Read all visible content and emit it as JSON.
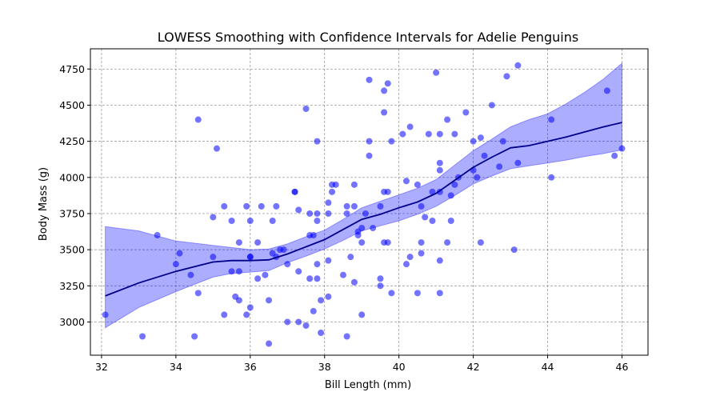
{
  "chart_data": {
    "type": "scatter",
    "title": "LOWESS Smoothing with Confidence Intervals for Adelie Penguins",
    "xlabel": "Bill Length (mm)",
    "ylabel": "Body Mass (g)",
    "xlim": [
      31.7,
      46.7
    ],
    "ylim": [
      2770,
      4890
    ],
    "xticks": [
      32,
      34,
      36,
      38,
      40,
      42,
      44,
      46
    ],
    "yticks": [
      3000,
      3250,
      3500,
      3750,
      4000,
      4250,
      4500,
      4750
    ],
    "grid": true,
    "colors": {
      "points": "#0000ff",
      "smooth_line": "#00008b",
      "band": "#0000ff"
    },
    "series": [
      {
        "kind": "scatter",
        "x": [
          32.1,
          33.1,
          33.5,
          34.0,
          34.1,
          34.4,
          34.5,
          34.6,
          34.6,
          35.0,
          35.0,
          35.1,
          35.3,
          35.3,
          35.5,
          35.5,
          35.6,
          35.7,
          35.7,
          35.7,
          35.9,
          35.9,
          36.0,
          36.0,
          36.0,
          36.0,
          36.2,
          36.2,
          36.3,
          36.4,
          36.5,
          36.5,
          36.6,
          36.6,
          36.7,
          36.7,
          36.8,
          36.9,
          37.0,
          37.0,
          37.2,
          37.2,
          37.3,
          37.3,
          37.3,
          37.5,
          37.5,
          37.6,
          37.6,
          37.6,
          37.7,
          37.7,
          37.8,
          37.8,
          37.8,
          37.8,
          37.8,
          37.9,
          37.9,
          38.1,
          38.1,
          38.1,
          38.1,
          38.2,
          38.2,
          38.3,
          38.5,
          38.6,
          38.6,
          38.6,
          38.7,
          38.8,
          38.8,
          38.8,
          38.9,
          38.9,
          39.0,
          39.0,
          39.0,
          39.1,
          39.2,
          39.2,
          39.2,
          39.3,
          39.5,
          39.5,
          39.5,
          39.6,
          39.6,
          39.6,
          39.6,
          39.7,
          39.7,
          39.7,
          39.8,
          39.8,
          40.1,
          40.2,
          40.2,
          40.3,
          40.3,
          40.5,
          40.5,
          40.6,
          40.6,
          40.6,
          40.7,
          40.8,
          40.9,
          40.9,
          41.0,
          41.1,
          41.1,
          41.1,
          41.1,
          41.1,
          41.1,
          41.3,
          41.3,
          41.4,
          41.4,
          41.5,
          41.5,
          41.6,
          41.8,
          42.0,
          42.0,
          42.1,
          42.2,
          42.2,
          42.3,
          42.5,
          42.7,
          42.8,
          42.9,
          43.1,
          43.2,
          43.2,
          44.1,
          44.1,
          45.6,
          45.8,
          46.0
        ],
        "y": [
          3050,
          2900,
          3600,
          3400,
          3475,
          3325,
          2900,
          4400,
          3200,
          3450,
          3725,
          4200,
          3800,
          3050,
          3350,
          3700,
          3175,
          3550,
          3350,
          3150,
          3800,
          3050,
          3450,
          3450,
          3700,
          3100,
          3550,
          3300,
          3800,
          3325,
          3150,
          2850,
          3700,
          3475,
          3800,
          3450,
          3500,
          3500,
          3000,
          3400,
          3900,
          3900,
          3775,
          3350,
          3000,
          4475,
          2975,
          3750,
          3600,
          3300,
          3600,
          3075,
          4250,
          3750,
          3700,
          3400,
          3300,
          3150,
          2925,
          3825,
          3750,
          3425,
          3175,
          3950,
          3900,
          3950,
          3325,
          3800,
          3750,
          2900,
          3450,
          3950,
          3800,
          3275,
          3600,
          3625,
          3550,
          3650,
          3050,
          3750,
          4675,
          4250,
          4150,
          3650,
          3300,
          3800,
          3250,
          4600,
          4450,
          3900,
          3550,
          3900,
          4650,
          3550,
          4250,
          3200,
          4300,
          3975,
          3400,
          4350,
          3450,
          3950,
          3200,
          3550,
          3475,
          3800,
          3725,
          4300,
          3700,
          3900,
          4725,
          4100,
          4050,
          4300,
          3900,
          3425,
          3200,
          4400,
          3550,
          3875,
          3700,
          4300,
          3950,
          4000,
          4450,
          4250,
          4050,
          4000,
          4275,
          3550,
          4150,
          4500,
          4075,
          4250,
          4700,
          3500,
          4775,
          4100,
          4400,
          4000,
          4600,
          4150,
          4200
        ]
      },
      {
        "kind": "line",
        "x": [
          32.1,
          33.0,
          34.0,
          35.0,
          35.5,
          36.0,
          36.5,
          37.0,
          37.5,
          38.0,
          38.5,
          39.0,
          39.5,
          40.0,
          40.5,
          41.0,
          41.5,
          42.0,
          42.5,
          43.0,
          43.5,
          44.0,
          44.5,
          45.0,
          45.5,
          46.0
        ],
        "y": [
          3180,
          3270,
          3350,
          3415,
          3425,
          3425,
          3430,
          3470,
          3520,
          3570,
          3640,
          3710,
          3745,
          3790,
          3830,
          3890,
          3980,
          4070,
          4140,
          4205,
          4220,
          4250,
          4280,
          4315,
          4350,
          4380
        ],
        "lower": [
          2960,
          3100,
          3210,
          3310,
          3335,
          3345,
          3355,
          3410,
          3455,
          3505,
          3565,
          3630,
          3665,
          3700,
          3745,
          3800,
          3875,
          3955,
          4010,
          4060,
          4080,
          4100,
          4120,
          4145,
          4165,
          4190
        ],
        "upper": [
          3660,
          3630,
          3560,
          3530,
          3515,
          3500,
          3505,
          3540,
          3590,
          3635,
          3710,
          3790,
          3835,
          3880,
          3925,
          3985,
          4085,
          4185,
          4265,
          4350,
          4400,
          4440,
          4510,
          4590,
          4680,
          4790
        ]
      }
    ]
  }
}
